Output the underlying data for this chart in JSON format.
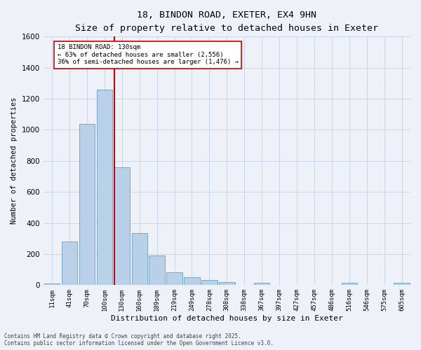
{
  "title_line1": "18, BINDON ROAD, EXETER, EX4 9HN",
  "title_line2": "Size of property relative to detached houses in Exeter",
  "xlabel": "Distribution of detached houses by size in Exeter",
  "ylabel": "Number of detached properties",
  "categories": [
    "11sqm",
    "41sqm",
    "70sqm",
    "100sqm",
    "130sqm",
    "160sqm",
    "189sqm",
    "219sqm",
    "249sqm",
    "278sqm",
    "308sqm",
    "338sqm",
    "367sqm",
    "397sqm",
    "427sqm",
    "457sqm",
    "486sqm",
    "516sqm",
    "546sqm",
    "575sqm",
    "605sqm"
  ],
  "values": [
    10,
    280,
    1040,
    1260,
    760,
    335,
    190,
    82,
    50,
    32,
    20,
    0,
    15,
    0,
    0,
    0,
    0,
    15,
    0,
    0,
    15
  ],
  "bar_color": "#b8d0e8",
  "bar_edge_color": "#6a9ec0",
  "grid_color": "#c8d8ea",
  "vline_color": "#cc0000",
  "annotation_title": "18 BINDON ROAD: 130sqm",
  "annotation_line1": "← 63% of detached houses are smaller (2,556)",
  "annotation_line2": "36% of semi-detached houses are larger (1,476) →",
  "annotation_box_color": "#ffffff",
  "annotation_box_edge": "#cc0000",
  "ylim": [
    0,
    1600
  ],
  "yticks": [
    0,
    200,
    400,
    600,
    800,
    1000,
    1200,
    1400,
    1600
  ],
  "footer_line1": "Contains HM Land Registry data © Crown copyright and database right 2025.",
  "footer_line2": "Contains public sector information licensed under the Open Government Licence v3.0.",
  "background_color": "#eef2f8"
}
